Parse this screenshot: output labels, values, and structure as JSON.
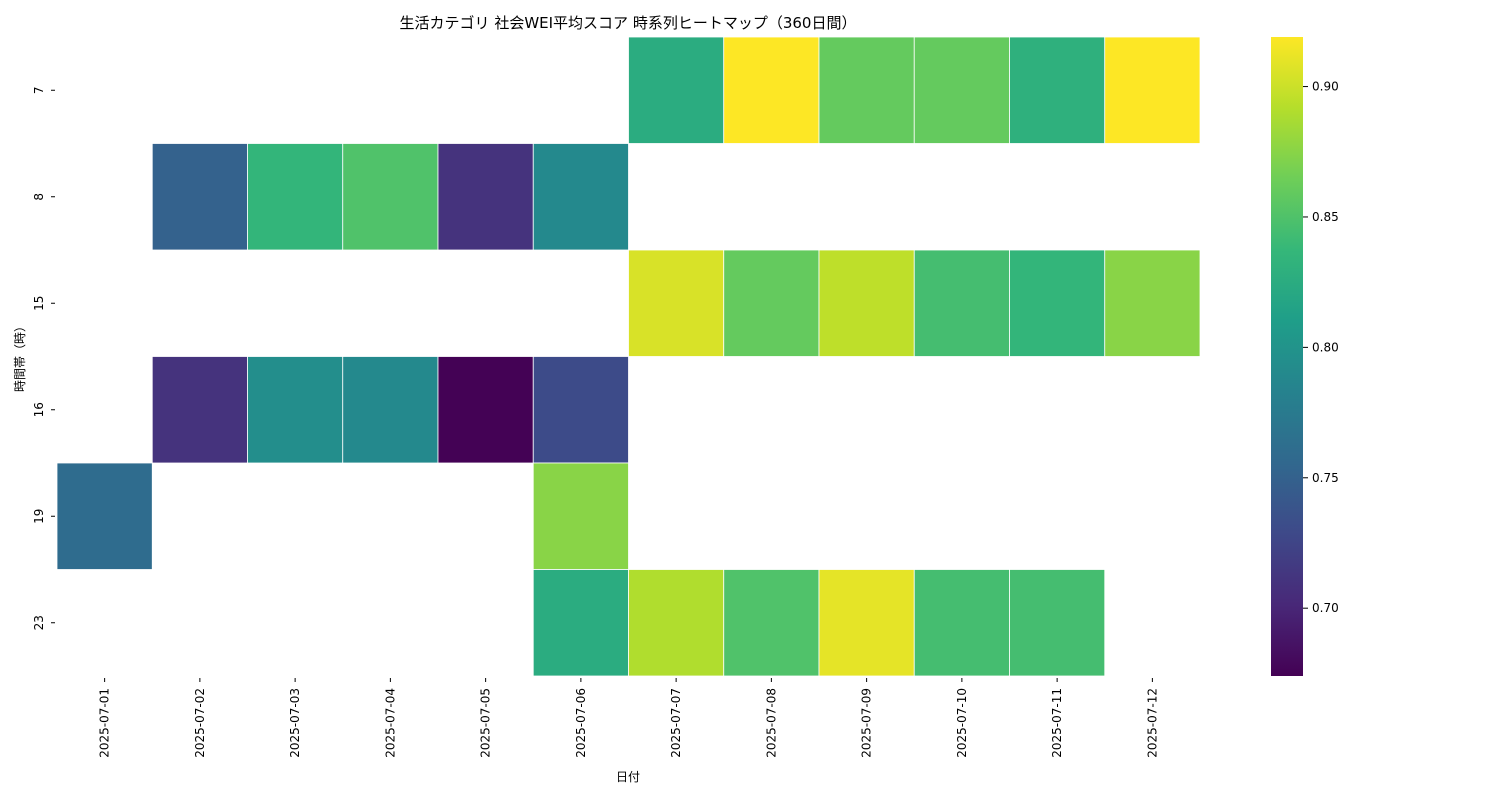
{
  "chart_data": {
    "type": "heatmap",
    "title": "生活カテゴリ 社会WEI平均スコア 時系列ヒートマップ（360日間）",
    "xlabel": "日付",
    "ylabel": "時間帯（時）",
    "x": [
      "2025-07-01",
      "2025-07-02",
      "2025-07-03",
      "2025-07-04",
      "2025-07-05",
      "2025-07-06",
      "2025-07-07",
      "2025-07-08",
      "2025-07-09",
      "2025-07-10",
      "2025-07-11",
      "2025-07-12"
    ],
    "y": [
      "7",
      "8",
      "15",
      "16",
      "19",
      "23"
    ],
    "values": [
      [
        null,
        null,
        null,
        null,
        null,
        null,
        0.825,
        0.92,
        0.86,
        0.86,
        0.83,
        0.92
      ],
      [
        null,
        0.75,
        0.835,
        0.85,
        0.71,
        0.79,
        null,
        null,
        null,
        null,
        null,
        null
      ],
      [
        null,
        null,
        null,
        null,
        null,
        null,
        0.905,
        0.86,
        0.895,
        0.845,
        0.835,
        0.875
      ],
      [
        null,
        0.71,
        0.795,
        0.79,
        0.675,
        0.73,
        null,
        null,
        null,
        null,
        null,
        null
      ],
      [
        0.76,
        null,
        null,
        null,
        null,
        0.875,
        null,
        null,
        null,
        null,
        null,
        null
      ],
      [
        null,
        null,
        null,
        null,
        null,
        0.825,
        0.89,
        0.85,
        0.91,
        0.845,
        0.845,
        null
      ]
    ],
    "colorbar": {
      "min": 0.674,
      "max": 0.919,
      "ticks": [
        "0.70",
        "0.75",
        "0.80",
        "0.85",
        "0.90"
      ],
      "colormap": "viridis"
    },
    "grid": false
  }
}
